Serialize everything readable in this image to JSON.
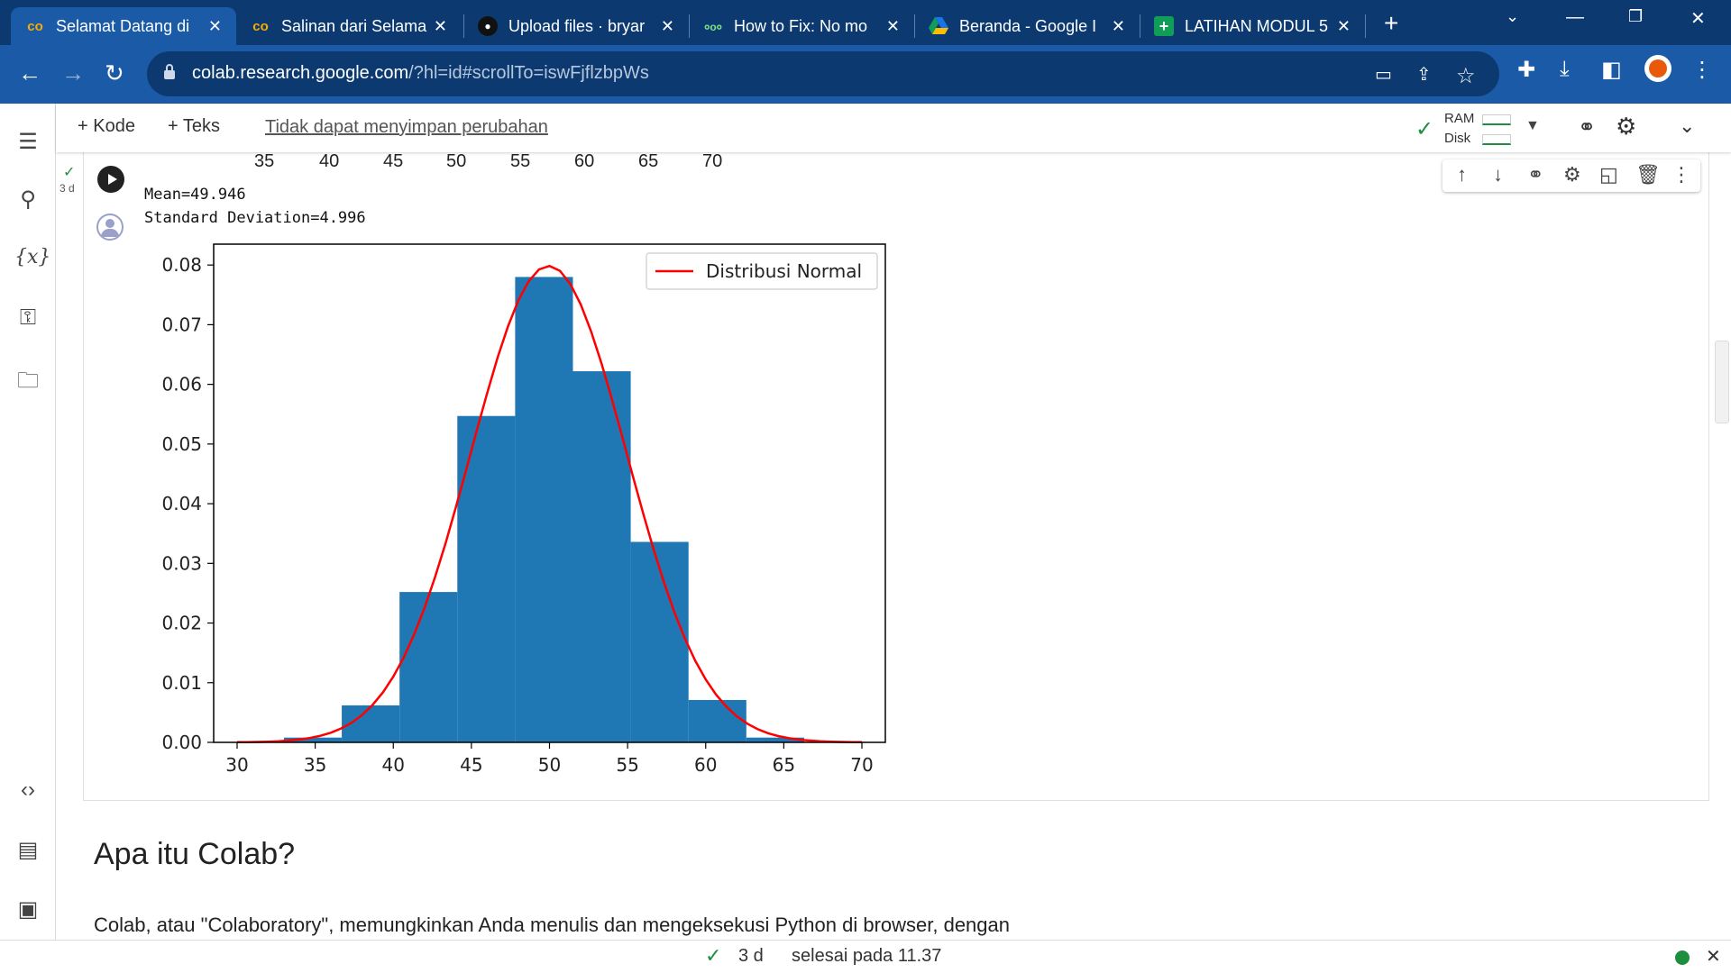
{
  "browser": {
    "tabs": [
      {
        "title": "Selamat Datang di",
        "favicon": "colab-icon",
        "active": true
      },
      {
        "title": "Salinan dari Selama",
        "favicon": "colab-icon",
        "active": false
      },
      {
        "title": "Upload files · bryar",
        "favicon": "github-icon",
        "active": false
      },
      {
        "title": "How to Fix: No mo",
        "favicon": "site-icon",
        "active": false
      },
      {
        "title": "Beranda - Google I",
        "favicon": "drive-icon",
        "active": false
      },
      {
        "title": "LATIHAN MODUL 5",
        "favicon": "sheets-icon",
        "active": false
      }
    ],
    "url_host": "colab.research.google.com",
    "url_rest": "/?hl=id#scrollTo=iswFjflzbpWs"
  },
  "colab": {
    "add_code_label": "+ Kode",
    "add_text_label": "+ Teks",
    "unsaved_label": "Tidak dapat menyimpan perubahan",
    "ram_label": "RAM",
    "disk_label": "Disk",
    "exec_badge": "3 d"
  },
  "cell": {
    "prev_ticks": [
      "35",
      "40",
      "45",
      "50",
      "55",
      "60",
      "65",
      "70"
    ],
    "output_mean": "Mean=49.946",
    "output_std": "Standard Deviation=4.996"
  },
  "chart_data": {
    "type": "bar",
    "title": "",
    "xlabel": "",
    "ylabel": "",
    "xlim": [
      28.5,
      71.5
    ],
    "ylim": [
      0,
      0.0835
    ],
    "xticks": [
      30,
      35,
      40,
      45,
      50,
      55,
      60,
      65,
      70
    ],
    "yticks": [
      0.0,
      0.01,
      0.02,
      0.03,
      0.04,
      0.05,
      0.06,
      0.07,
      0.08
    ],
    "ytick_labels": [
      "0.00",
      "0.01",
      "0.02",
      "0.03",
      "0.04",
      "0.05",
      "0.06",
      "0.07",
      "0.08"
    ],
    "histogram": {
      "bin_edges": [
        33.0,
        36.7,
        40.4,
        44.1,
        47.8,
        51.5,
        55.2,
        58.9,
        62.6,
        66.3
      ],
      "values": [
        0.0008,
        0.0062,
        0.0252,
        0.0547,
        0.078,
        0.0622,
        0.0336,
        0.0071,
        0.0008
      ],
      "color": "#1f77b4"
    },
    "series": [
      {
        "name": "Distribusi Normal",
        "type": "line",
        "color": "#ff0000",
        "mean": 49.946,
        "std": 4.996,
        "x_range": [
          30,
          70
        ]
      }
    ],
    "legend_position": "top-right",
    "grid": false
  },
  "section": {
    "title": "Apa itu Colab?",
    "paragraph": "Colab, atau \"Colaboratory\", memungkinkan Anda menulis dan mengeksekusi Python di browser, dengan"
  },
  "statusbar": {
    "duration": "3 d",
    "completed": "selesai pada 11.37"
  },
  "colors": {
    "tab_strip": "#0c3a70",
    "toolbar": "#1b5aa6",
    "status_ok": "#1e8e3e"
  }
}
